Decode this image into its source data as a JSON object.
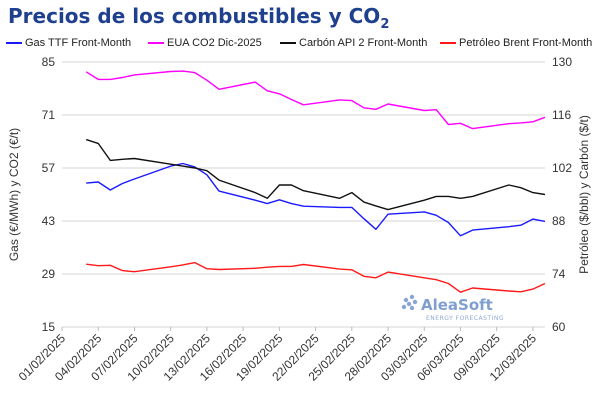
{
  "header": {
    "title_main": "Precios de los combustibles y CO",
    "title_sub": "2"
  },
  "watermark": {
    "brand": "AleaSoft",
    "tagline": "ENERGY FORECASTING",
    "color": "#8aa4d6"
  },
  "chart_data": {
    "type": "line",
    "ylabel_left": "Gas (€/MWh) y CO2 (€/t)",
    "ylabel_right": "Petróleo ($/bbl) y Carbón ($/t)",
    "ylim_left": [
      15,
      85
    ],
    "ylim_right": [
      60,
      130
    ],
    "yticks_left": [
      15,
      29,
      43,
      57,
      71,
      85
    ],
    "yticks_right": [
      60,
      74,
      88,
      102,
      116,
      130
    ],
    "x_ticks": [
      "01/02/2025",
      "04/02/2025",
      "07/02/2025",
      "10/02/2025",
      "13/02/2025",
      "16/02/2025",
      "19/02/2025",
      "22/02/2025",
      "25/02/2025",
      "28/02/2025",
      "03/03/2025",
      "06/03/2025",
      "09/03/2025",
      "12/03/2025"
    ],
    "x": [
      "03/02/2025",
      "04/02/2025",
      "05/02/2025",
      "06/02/2025",
      "07/02/2025",
      "10/02/2025",
      "11/02/2025",
      "12/02/2025",
      "13/02/2025",
      "14/02/2025",
      "17/02/2025",
      "18/02/2025",
      "19/02/2025",
      "20/02/2025",
      "21/02/2025",
      "24/02/2025",
      "25/02/2025",
      "26/02/2025",
      "27/02/2025",
      "28/02/2025",
      "03/03/2025",
      "04/03/2025",
      "05/03/2025",
      "06/03/2025",
      "07/03/2025",
      "10/03/2025",
      "11/03/2025",
      "12/03/2025",
      "13/03/2025"
    ],
    "series": [
      {
        "name": "Gas TTF Front-Month",
        "axis": "left",
        "color": "#1a1aff",
        "values": [
          53.0,
          53.3,
          51.2,
          52.9,
          54.1,
          57.5,
          58.2,
          57.3,
          55.2,
          50.9,
          48.5,
          47.6,
          48.6,
          47.6,
          46.9,
          46.6,
          46.6,
          43.6,
          40.8,
          44.8,
          45.4,
          44.5,
          42.6,
          39.1,
          40.6,
          41.5,
          41.9,
          43.5,
          42.9
        ]
      },
      {
        "name": "EUA CO2 Dic-2025",
        "axis": "left",
        "color": "#ff00ff",
        "values": [
          82.4,
          80.4,
          80.4,
          80.9,
          81.6,
          82.5,
          82.6,
          82.2,
          80.2,
          77.8,
          79.7,
          77.4,
          76.6,
          75.1,
          73.7,
          75.0,
          74.8,
          72.9,
          72.5,
          73.9,
          72.2,
          72.4,
          68.5,
          68.8,
          67.4,
          68.7,
          68.9,
          69.2,
          70.4
        ]
      },
      {
        "name": "Carbón API 2 Front-Month",
        "axis": "right",
        "color": "#111111",
        "values": [
          109.5,
          108.5,
          104.0,
          104.3,
          104.5,
          103.0,
          102.5,
          102.0,
          101.3,
          98.8,
          95.5,
          94.0,
          97.5,
          97.5,
          96.0,
          94.0,
          95.5,
          93.0,
          92.0,
          91.0,
          93.5,
          94.5,
          94.5,
          94.0,
          94.5,
          97.5,
          96.8,
          95.5,
          95.0
        ]
      },
      {
        "name": "Petróleo Brent Front-Month",
        "axis": "right",
        "color": "#ff1a1a",
        "values": [
          76.6,
          76.2,
          76.3,
          74.9,
          74.6,
          75.9,
          76.4,
          77.0,
          75.4,
          75.2,
          75.5,
          75.8,
          76.0,
          76.0,
          76.5,
          75.3,
          75.1,
          73.4,
          73.0,
          74.5,
          73.0,
          72.5,
          71.5,
          69.2,
          70.3,
          69.5,
          69.3,
          70.0,
          71.5
        ]
      }
    ],
    "grid": true,
    "legend_position": "top"
  }
}
